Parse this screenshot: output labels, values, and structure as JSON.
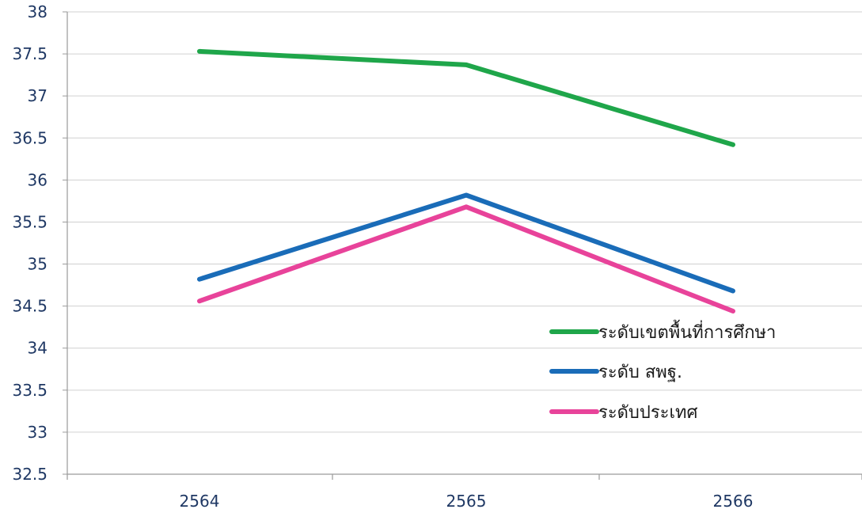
{
  "chart_data": {
    "type": "line",
    "title": "",
    "xlabel": "",
    "ylabel": "",
    "categories": [
      "2564",
      "2565",
      "2566"
    ],
    "ylim": [
      32.5,
      38
    ],
    "yticks": [
      "32.5",
      "33",
      "33.5",
      "34",
      "34.5",
      "35",
      "35.5",
      "36",
      "36.5",
      "37",
      "37.5",
      "38"
    ],
    "grid": true,
    "legend_position": "bottom-right",
    "series": [
      {
        "name": "ระดับเขตพื้นที่การศึกษา",
        "values": [
          37.53,
          37.37,
          36.42
        ],
        "color": "#1fa64a"
      },
      {
        "name": "ระดับ สพฐ.",
        "values": [
          34.82,
          35.82,
          34.68
        ],
        "color": "#1a6cb8"
      },
      {
        "name": "ระดับประเทศ",
        "values": [
          34.56,
          35.68,
          34.44
        ],
        "color": "#e8439a"
      }
    ]
  }
}
